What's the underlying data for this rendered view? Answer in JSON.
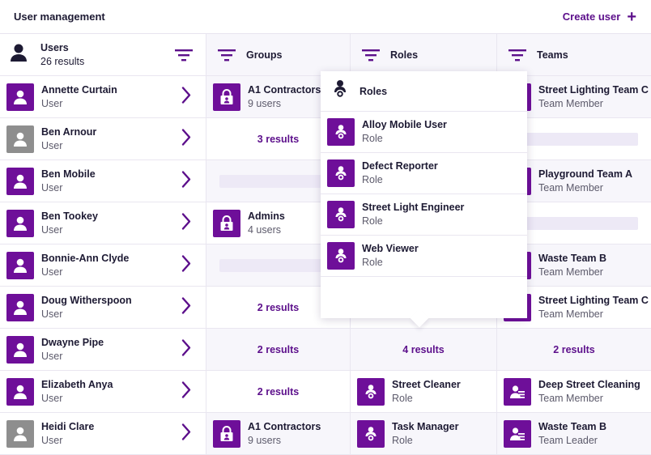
{
  "header": {
    "title": "User management",
    "create_label": "Create user"
  },
  "columns": {
    "users": {
      "label": "Users",
      "count": "26 results"
    },
    "groups": {
      "label": "Groups"
    },
    "roles": {
      "label": "Roles"
    },
    "teams": {
      "label": "Teams"
    }
  },
  "rows": [
    {
      "name": "Annette Curtain",
      "type": "User",
      "avatar": "purple",
      "group": {
        "kind": "item",
        "name": "A1 Contractors",
        "sub": "9 users"
      },
      "role": {
        "kind": "hidden"
      },
      "team": {
        "kind": "item",
        "name": "Street Lighting Team C",
        "sub": "Team Member"
      }
    },
    {
      "name": "Ben Arnour",
      "type": "User",
      "avatar": "grey",
      "group": {
        "kind": "results",
        "text": "3 results"
      },
      "role": {
        "kind": "hidden"
      },
      "team": {
        "kind": "placeholder"
      }
    },
    {
      "name": "Ben Mobile",
      "type": "User",
      "avatar": "purple",
      "group": {
        "kind": "placeholder"
      },
      "role": {
        "kind": "hidden"
      },
      "team": {
        "kind": "item",
        "name": "Playground Team A",
        "sub": "Team Member"
      }
    },
    {
      "name": "Ben Tookey",
      "type": "User",
      "avatar": "purple",
      "group": {
        "kind": "item",
        "name": "Admins",
        "sub": "4 users"
      },
      "role": {
        "kind": "hidden"
      },
      "team": {
        "kind": "placeholder"
      }
    },
    {
      "name": "Bonnie-Ann Clyde",
      "type": "User",
      "avatar": "purple",
      "group": {
        "kind": "placeholder"
      },
      "role": {
        "kind": "hidden"
      },
      "team": {
        "kind": "item",
        "name": "Waste Team B",
        "sub": "Team Member"
      }
    },
    {
      "name": "Doug Witherspoon",
      "type": "User",
      "avatar": "purple",
      "group": {
        "kind": "results",
        "text": "2 results"
      },
      "role": {
        "kind": "hidden"
      },
      "team": {
        "kind": "item",
        "name": "Street Lighting Team C",
        "sub": "Team Member"
      }
    },
    {
      "name": "Dwayne Pipe",
      "type": "User",
      "avatar": "purple",
      "group": {
        "kind": "results",
        "text": "2 results"
      },
      "role": {
        "kind": "results",
        "text": "4 results"
      },
      "team": {
        "kind": "results",
        "text": "2 results"
      }
    },
    {
      "name": "Elizabeth Anya",
      "type": "User",
      "avatar": "purple",
      "group": {
        "kind": "results",
        "text": "2 results"
      },
      "role": {
        "kind": "item",
        "name": "Street Cleaner",
        "sub": "Role"
      },
      "team": {
        "kind": "item",
        "name": "Deep Street Cleaning",
        "sub": "Team Member"
      }
    },
    {
      "name": "Heidi Clare",
      "type": "User",
      "avatar": "grey",
      "group": {
        "kind": "item",
        "name": "A1 Contractors",
        "sub": "9 users"
      },
      "role": {
        "kind": "item",
        "name": "Task Manager",
        "sub": "Role"
      },
      "team": {
        "kind": "item",
        "name": "Waste Team B",
        "sub": "Team Leader"
      }
    }
  ],
  "popover": {
    "title": "Roles",
    "items": [
      {
        "name": "Alloy Mobile User",
        "sub": "Role"
      },
      {
        "name": "Defect Reporter",
        "sub": "Role"
      },
      {
        "name": "Street Light Engineer",
        "sub": "Role"
      },
      {
        "name": "Web Viewer",
        "sub": "Role"
      }
    ]
  },
  "colors": {
    "accent": "#5c0f8b",
    "avatar_purple": "#6e0f99",
    "avatar_grey": "#8e8e8e"
  },
  "icons": {
    "user": "person-icon",
    "group": "padlock-group-icon",
    "role": "role-badge-icon",
    "team": "team-icon",
    "filter": "filter-icon",
    "chevron": "chevron-right-icon",
    "create": "plus-icon"
  }
}
